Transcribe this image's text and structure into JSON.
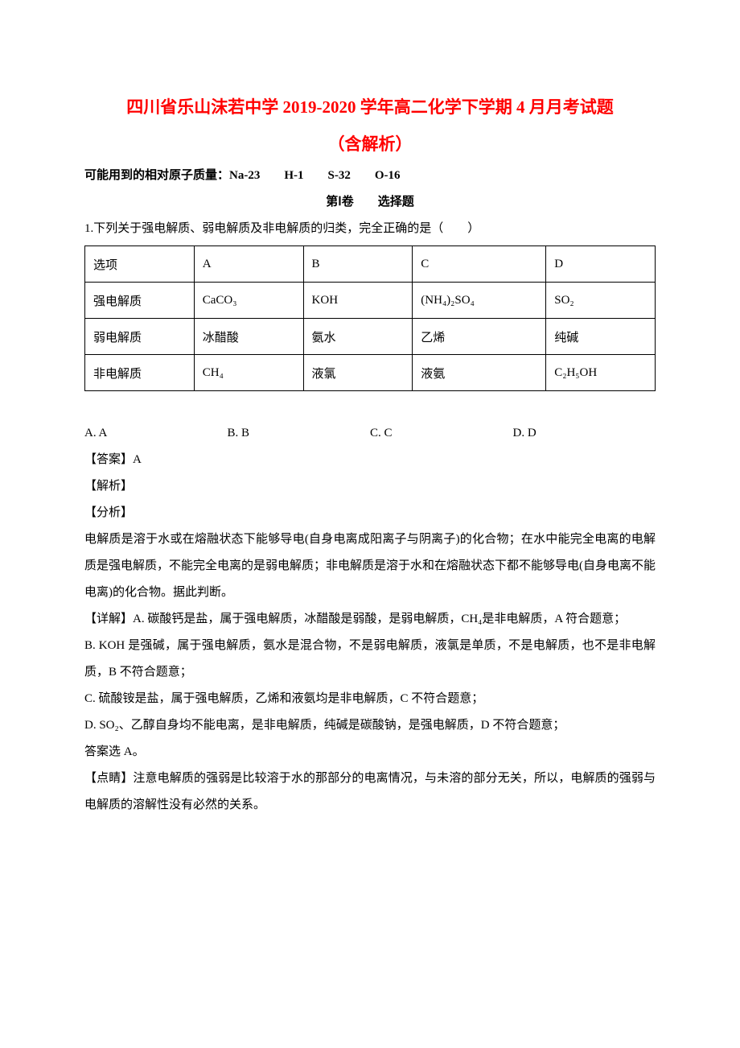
{
  "title_line1": "四川省乐山沫若中学 2019-2020 学年高二化学下学期 4 月月考试题",
  "title_line2": "（含解析）",
  "atomic_mass_line": "可能用到的相对原子质量：Na-23　　H-1　　S-32　　O-16",
  "section_header": "第Ⅰ卷　　选择题",
  "q1_stem": "1.下列关于强电解质、弱电解质及非电解质的归类，完全正确的是（　　）",
  "table": {
    "rows": [
      {
        "c1": "选项",
        "c2": "A",
        "c3": "B",
        "c4": "C",
        "c5": "D"
      },
      {
        "c1": "强电解质",
        "c2": "CaCO₃",
        "c3": "KOH",
        "c4": "(NH₄)₂SO₄",
        "c5": "SO₂"
      },
      {
        "c1": "弱电解质",
        "c2": "冰醋酸",
        "c3": "氨水",
        "c4": "乙烯",
        "c5": "纯碱"
      },
      {
        "c1": "非电解质",
        "c2": "CH₄",
        "c3": "液氯",
        "c4": "液氨",
        "c5": "C₂H₅OH"
      }
    ]
  },
  "options": {
    "a": "A. A",
    "b": "B. B",
    "c": "C. C",
    "d": "D. D"
  },
  "answer_label": "【答案】A",
  "jiexi_label": "【解析】",
  "fenxi_label": "【分析】",
  "fenxi_text": "电解质是溶于水或在熔融状态下能够导电(自身电离成阳离子与阴离子)的化合物；在水中能完全电离的电解质是强电解质，不能完全电离的是弱电解质；非电解质是溶于水和在熔融状态下都不能够导电(自身电离不能电离)的化合物。据此判断。",
  "xiangjie_a": "【详解】A. 碳酸钙是盐，属于强电解质，冰醋酸是弱酸，是弱电解质，CH₄是非电解质，A 符合题意；",
  "xiangjie_b": "B. KOH 是强碱，属于强电解质，氨水是混合物，不是弱电解质，液氯是单质，不是电解质，也不是非电解质，B 不符合题意；",
  "xiangjie_c": "C. 硫酸铵是盐，属于强电解质，乙烯和液氨均是非电解质，C 不符合题意；",
  "xiangjie_d": "D. SO₂、乙醇自身均不能电离，是非电解质，纯碱是碳酸钠，是强电解质，D 不符合题意；",
  "answer_line": "答案选 A。",
  "dianping": "【点睛】注意电解质的强弱是比较溶于水的那部分的电离情况，与未溶的部分无关，所以，电解质的强弱与电解质的溶解性没有必然的关系。",
  "colors": {
    "title_color": "#ff0000",
    "text_color": "#000000",
    "background": "#ffffff",
    "border_color": "#000000"
  },
  "typography": {
    "title_fontsize": 21,
    "body_fontsize": 15,
    "line_height": 2.2,
    "font_family": "SimSun"
  }
}
